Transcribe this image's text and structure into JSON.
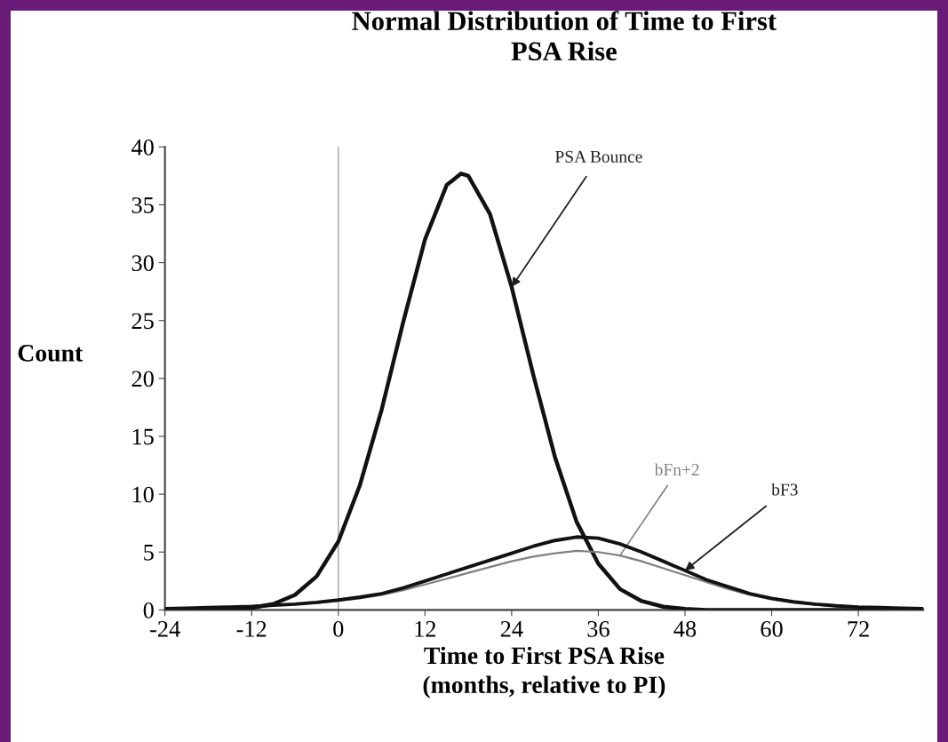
{
  "chart_data": {
    "type": "line",
    "title": "Normal Distribution of Time to First\nPSA Rise",
    "xlabel": "Time to First PSA Rise\n(months, relative to PI)",
    "ylabel": "Count",
    "xlim": [
      -24,
      81
    ],
    "xticks": [
      -24,
      -12,
      0,
      12,
      24,
      36,
      48,
      60,
      72
    ],
    "ylim": [
      0,
      40
    ],
    "yticks": [
      0,
      5,
      10,
      15,
      20,
      25,
      30,
      35,
      40
    ],
    "grid": false,
    "legend": false,
    "marker": "none",
    "line_style": "solid",
    "series": [
      {
        "color": "#111111",
        "x": [
          -24,
          -21,
          -18,
          -15,
          -12,
          -9,
          -6,
          -3,
          0,
          3,
          6,
          9,
          12,
          15,
          17,
          18,
          21,
          24,
          27,
          30,
          33,
          36,
          39,
          42,
          45,
          48,
          51,
          54,
          60,
          72,
          81
        ],
        "values": [
          0,
          0,
          0,
          0.06,
          0.18,
          0.51,
          1.3,
          2.9,
          5.9,
          10.8,
          17.3,
          24.9,
          32.0,
          36.7,
          37.7,
          37.5,
          34.2,
          27.9,
          20.3,
          13.2,
          7.6,
          4.0,
          1.8,
          0.76,
          0.28,
          0.09,
          0,
          0,
          0,
          0,
          0
        ]
      },
      {
        "color": "#808080",
        "x": [
          -24,
          -21,
          -18,
          -15,
          -12,
          -9,
          -6,
          -3,
          0,
          3,
          6,
          9,
          12,
          15,
          18,
          21,
          24,
          27,
          30,
          33,
          36,
          39,
          42,
          45,
          48,
          51,
          54,
          57,
          60,
          63,
          66,
          69,
          72,
          75,
          78,
          81
        ],
        "values": [
          0.1,
          0.15,
          0.2,
          0.25,
          0.3,
          0.4,
          0.5,
          0.6,
          0.8,
          1.0,
          1.3,
          1.7,
          2.2,
          2.7,
          3.2,
          3.7,
          4.2,
          4.6,
          4.9,
          5.1,
          5.0,
          4.7,
          4.2,
          3.6,
          3.0,
          2.4,
          1.8,
          1.3,
          0.9,
          0.65,
          0.45,
          0.3,
          0.22,
          0.17,
          0.12,
          0.1
        ]
      },
      {
        "color": "#111111",
        "x": [
          -24,
          -21,
          -18,
          -15,
          -12,
          -9,
          -6,
          -3,
          0,
          3,
          6,
          9,
          12,
          15,
          18,
          21,
          24,
          27,
          30,
          33,
          36,
          39,
          42,
          45,
          48,
          51,
          54,
          57,
          60,
          63,
          66,
          69,
          72,
          75,
          78,
          81
        ],
        "values": [
          0.1,
          0.15,
          0.2,
          0.25,
          0.3,
          0.4,
          0.5,
          0.65,
          0.85,
          1.1,
          1.4,
          1.9,
          2.5,
          3.1,
          3.7,
          4.3,
          4.9,
          5.5,
          6.0,
          6.3,
          6.2,
          5.7,
          5.0,
          4.2,
          3.4,
          2.6,
          2.0,
          1.4,
          1.0,
          0.7,
          0.5,
          0.35,
          0.25,
          0.2,
          0.15,
          0.1
        ]
      }
    ],
    "ref_lines": [
      {
        "axis": "x",
        "value": 0,
        "color": "#a0a0a0"
      }
    ],
    "annotations": [
      {
        "text": "PSA Bounce",
        "x": 24,
        "y": 27.9
      },
      {
        "text": "bFn+2",
        "x": 39,
        "y": 4.7
      },
      {
        "text": "bF3",
        "x": 48,
        "y": 3.4
      }
    ]
  }
}
